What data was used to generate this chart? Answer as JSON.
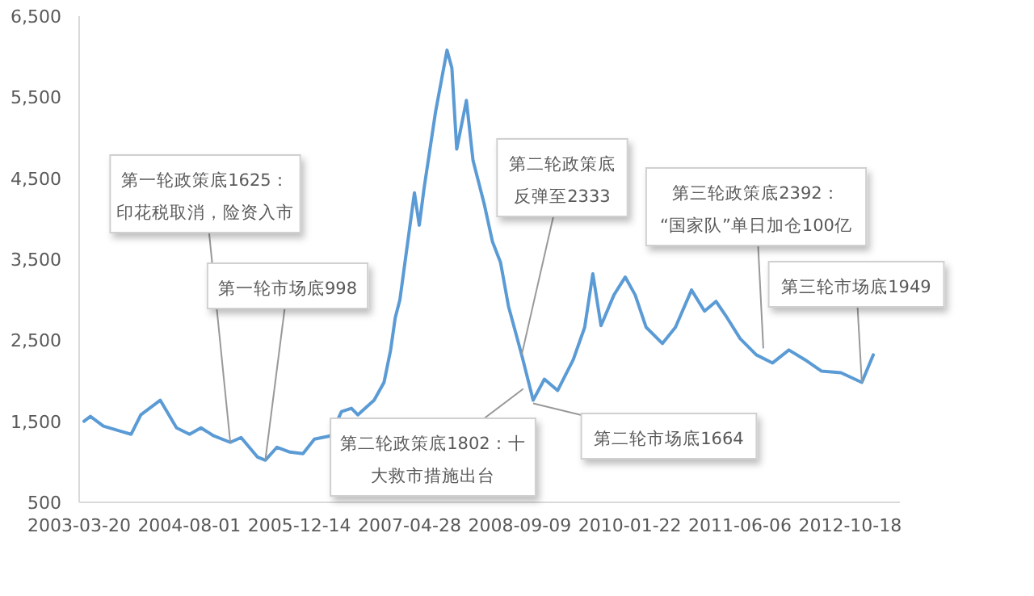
{
  "chart_data": {
    "type": "line",
    "x": [
      "2003-04-11",
      "2003-05-10",
      "2003-07-08",
      "2003-09-20",
      "2003-11-11",
      "2003-12-25",
      "2004-03-22",
      "2004-06-04",
      "2004-08-02",
      "2004-09-23",
      "2004-11-20",
      "2005-02-03",
      "2005-03-24",
      "2005-06-06",
      "2005-07-12",
      "2005-09-03",
      "2005-11-01",
      "2005-12-30",
      "2006-02-20",
      "2006-05-03",
      "2006-06-23",
      "2006-08-07",
      "2006-09-05",
      "2006-11-18",
      "2007-01-02",
      "2007-02-01",
      "2007-02-22",
      "2007-03-15",
      "2007-05-20",
      "2007-06-11",
      "2007-07-03",
      "2007-08-24",
      "2007-10-15",
      "2007-11-06",
      "2007-11-28",
      "2008-01-11",
      "2008-02-10",
      "2008-04-01",
      "2008-05-08",
      "2008-06-14",
      "2008-07-20",
      "2008-09-18",
      "2008-11-09",
      "2008-12-30",
      "2009-02-28",
      "2009-05-10",
      "2009-07-01",
      "2009-08-07",
      "2009-09-13",
      "2009-11-11",
      "2010-01-01",
      "2010-02-15",
      "2010-04-06",
      "2010-06-19",
      "2010-08-17",
      "2010-10-29",
      "2010-12-27",
      "2011-02-17",
      "2011-04-08",
      "2011-06-07",
      "2011-08-19",
      "2011-11-01",
      "2012-01-14",
      "2012-03-27",
      "2012-06-09",
      "2012-09-06",
      "2012-12-10",
      "2013-01-31"
    ],
    "values": [
      1500,
      1560,
      1440,
      1380,
      1340,
      1580,
      1760,
      1420,
      1340,
      1420,
      1320,
      1240,
      1300,
      1060,
      1020,
      1180,
      1120,
      1100,
      1280,
      1320,
      1620,
      1660,
      1580,
      1760,
      1980,
      2380,
      2780,
      3000,
      4320,
      3920,
      4380,
      5320,
      6080,
      5860,
      4860,
      5460,
      4720,
      4180,
      3720,
      3460,
      2920,
      2320,
      1760,
      2020,
      1880,
      2260,
      2660,
      3320,
      2680,
      3060,
      3280,
      3060,
      2660,
      2460,
      2660,
      3120,
      2860,
      2980,
      2780,
      2520,
      2320,
      2220,
      2380,
      2260,
      2120,
      2100,
      1980,
      2320
    ],
    "color": "#5b9bd5",
    "xlim": [
      "2003-03-20",
      "2013-06-01"
    ],
    "xticks": [
      "2003-03-20",
      "2004-08-01",
      "2005-12-14",
      "2007-04-28",
      "2008-09-09",
      "2010-01-22",
      "2011-06-06",
      "2012-10-18"
    ],
    "ylim": [
      500,
      6500
    ],
    "yticks": [
      500,
      {
        "value": 1500,
        "label": "1,500"
      },
      {
        "value": 2500,
        "label": "2,500"
      },
      {
        "value": 3500,
        "label": "3,500"
      },
      {
        "value": 4500,
        "label": "4,500"
      },
      {
        "value": 5500,
        "label": "5,500"
      },
      {
        "value": 6500,
        "label": "6,500"
      }
    ],
    "annotations": [
      {
        "text": "第一轮政策底1625：印花税取消，险资入市",
        "x": "2005-02-03",
        "y": 1240
      },
      {
        "text": "第一轮市场底998",
        "x": "2005-07-12",
        "y": 1020
      },
      {
        "text": "第二轮政策底反弹至2333",
        "x": "2008-09-18",
        "y": 2320
      },
      {
        "text": "第二轮政策底1802：十大救市措施出台",
        "x": "2008-09-25",
        "y": 1900
      },
      {
        "text": "第二轮市场底1664",
        "x": "2008-11-09",
        "y": 1720
      },
      {
        "text": "第三轮政策底2392：“国家队”单日加仓100亿",
        "x": "2011-09-20",
        "y": 2400
      },
      {
        "text": "第三轮市场底1949",
        "x": "2012-12-10",
        "y": 1980
      }
    ]
  }
}
